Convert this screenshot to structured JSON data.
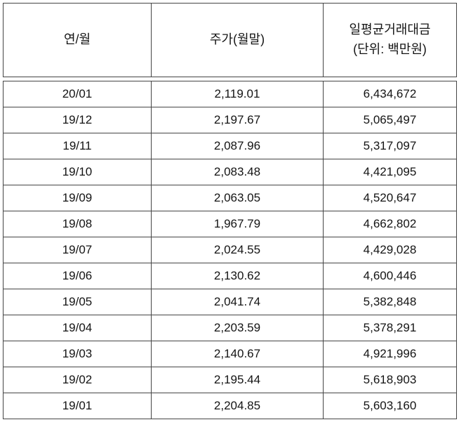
{
  "chart_data": {
    "type": "table",
    "columns": [
      {
        "label": "연/월"
      },
      {
        "label": "주가(월말)"
      },
      {
        "label": "일평균거래대금",
        "sublabel": "(단위: 백만원)"
      }
    ],
    "rows": [
      [
        "20/01",
        "2,119.01",
        "6,434,672"
      ],
      [
        "19/12",
        "2,197.67",
        "5,065,497"
      ],
      [
        "19/11",
        "2,087.96",
        "5,317,097"
      ],
      [
        "19/10",
        "2,083.48",
        "4,421,095"
      ],
      [
        "19/09",
        "2,063.05",
        "4,520,647"
      ],
      [
        "19/08",
        "1,967.79",
        "4,662,802"
      ],
      [
        "19/07",
        "2,024.55",
        "4,429,028"
      ],
      [
        "19/06",
        "2,130.62",
        "4,600,446"
      ],
      [
        "19/05",
        "2,041.74",
        "5,382,848"
      ],
      [
        "19/04",
        "2,203.59",
        "5,378,291"
      ],
      [
        "19/03",
        "2,140.67",
        "4,921,996"
      ],
      [
        "19/02",
        "2,195.44",
        "5,618,903"
      ],
      [
        "19/01",
        "2,204.85",
        "5,603,160"
      ]
    ]
  },
  "colors": {
    "border": "#454545",
    "text": "#141414",
    "background": "#ffffff"
  }
}
